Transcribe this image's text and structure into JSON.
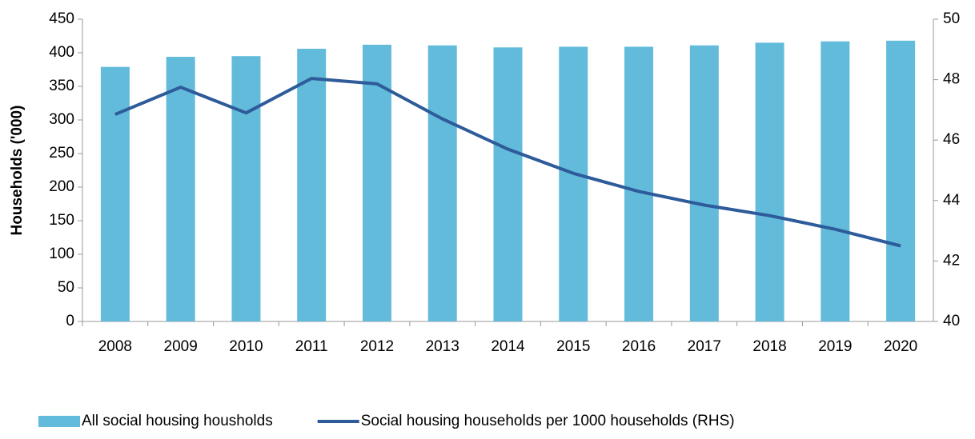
{
  "chart_data": {
    "type": "bar",
    "y_label": "Households ('000)",
    "categories": [
      "2008",
      "2009",
      "2010",
      "2011",
      "2012",
      "2013",
      "2014",
      "2015",
      "2016",
      "2017",
      "2018",
      "2019",
      "2020"
    ],
    "series": [
      {
        "name": "All social housing housholds",
        "type": "bar",
        "color": "#63bbdb",
        "values": [
          379,
          394,
          395,
          406,
          412,
          411,
          408,
          409,
          409,
          411,
          415,
          417,
          418
        ]
      },
      {
        "name": "Social housing households per 1000 households (RHS)",
        "type": "line",
        "axis": "y2",
        "color": "#2e5b9a",
        "values": [
          46.85,
          47.75,
          46.9,
          48.04,
          47.86,
          46.7,
          45.7,
          44.9,
          44.3,
          43.85,
          43.5,
          43.05,
          42.5
        ]
      }
    ],
    "ylim": [
      0,
      450
    ],
    "yticks": [
      0,
      50,
      100,
      150,
      200,
      250,
      300,
      350,
      400,
      450
    ],
    "y2lim": [
      40,
      50
    ],
    "y2ticks": [
      40,
      42,
      44,
      46,
      48,
      50
    ],
    "legend": "bottom"
  }
}
